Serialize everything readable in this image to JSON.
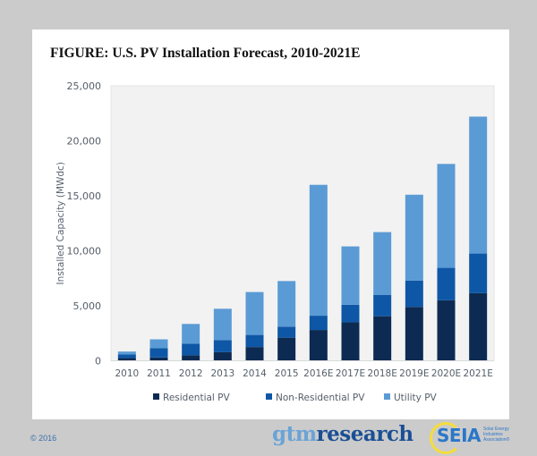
{
  "figure_title": "FIGURE: U.S. PV Installation Forecast, 2010-2021E",
  "footer": {
    "copyright": "© 2016",
    "logo_gtm_part1": "gtm",
    "logo_gtm_part2": "research",
    "logo_seia": "SEIA",
    "logo_seia_sub": "Solar Energy Industries Association®"
  },
  "colors": {
    "residential": "#0d2b52",
    "non_residential": "#0e57a6",
    "utility": "#5b9bd5",
    "plot_bg": "#f2f2f2"
  },
  "chart_data": {
    "type": "bar",
    "stacked": true,
    "title": "FIGURE: U.S. PV Installation Forecast, 2010-2021E",
    "xlabel": "",
    "ylabel": "Installed Capacity (MWdc)",
    "ylim": [
      0,
      25000
    ],
    "yticks": [
      0,
      5000,
      10000,
      15000,
      20000,
      25000
    ],
    "ytick_labels": [
      "0",
      "5,000",
      "10,000",
      "15,000",
      "20,000",
      "25,000"
    ],
    "grid": false,
    "legend_position": "bottom",
    "categories": [
      "2010",
      "2011",
      "2012",
      "2013",
      "2014",
      "2015",
      "2016E",
      "2017E",
      "2018E",
      "2019E",
      "2020E",
      "2021E"
    ],
    "series": [
      {
        "name": "Residential PV",
        "color": "#0d2b52",
        "values": [
          250,
          300,
          500,
          780,
          1250,
          2100,
          2800,
          3500,
          4050,
          4900,
          5500,
          6150
        ]
      },
      {
        "name": "Non-Residential PV",
        "color": "#0e57a6",
        "values": [
          340,
          850,
          1050,
          1100,
          1100,
          1000,
          1300,
          1600,
          1950,
          2400,
          2950,
          3600
        ]
      },
      {
        "name": "Utility PV",
        "color": "#5b9bd5",
        "values": [
          250,
          800,
          1800,
          2850,
          3900,
          4150,
          11900,
          5300,
          5700,
          7800,
          9450,
          12450
        ]
      }
    ]
  }
}
